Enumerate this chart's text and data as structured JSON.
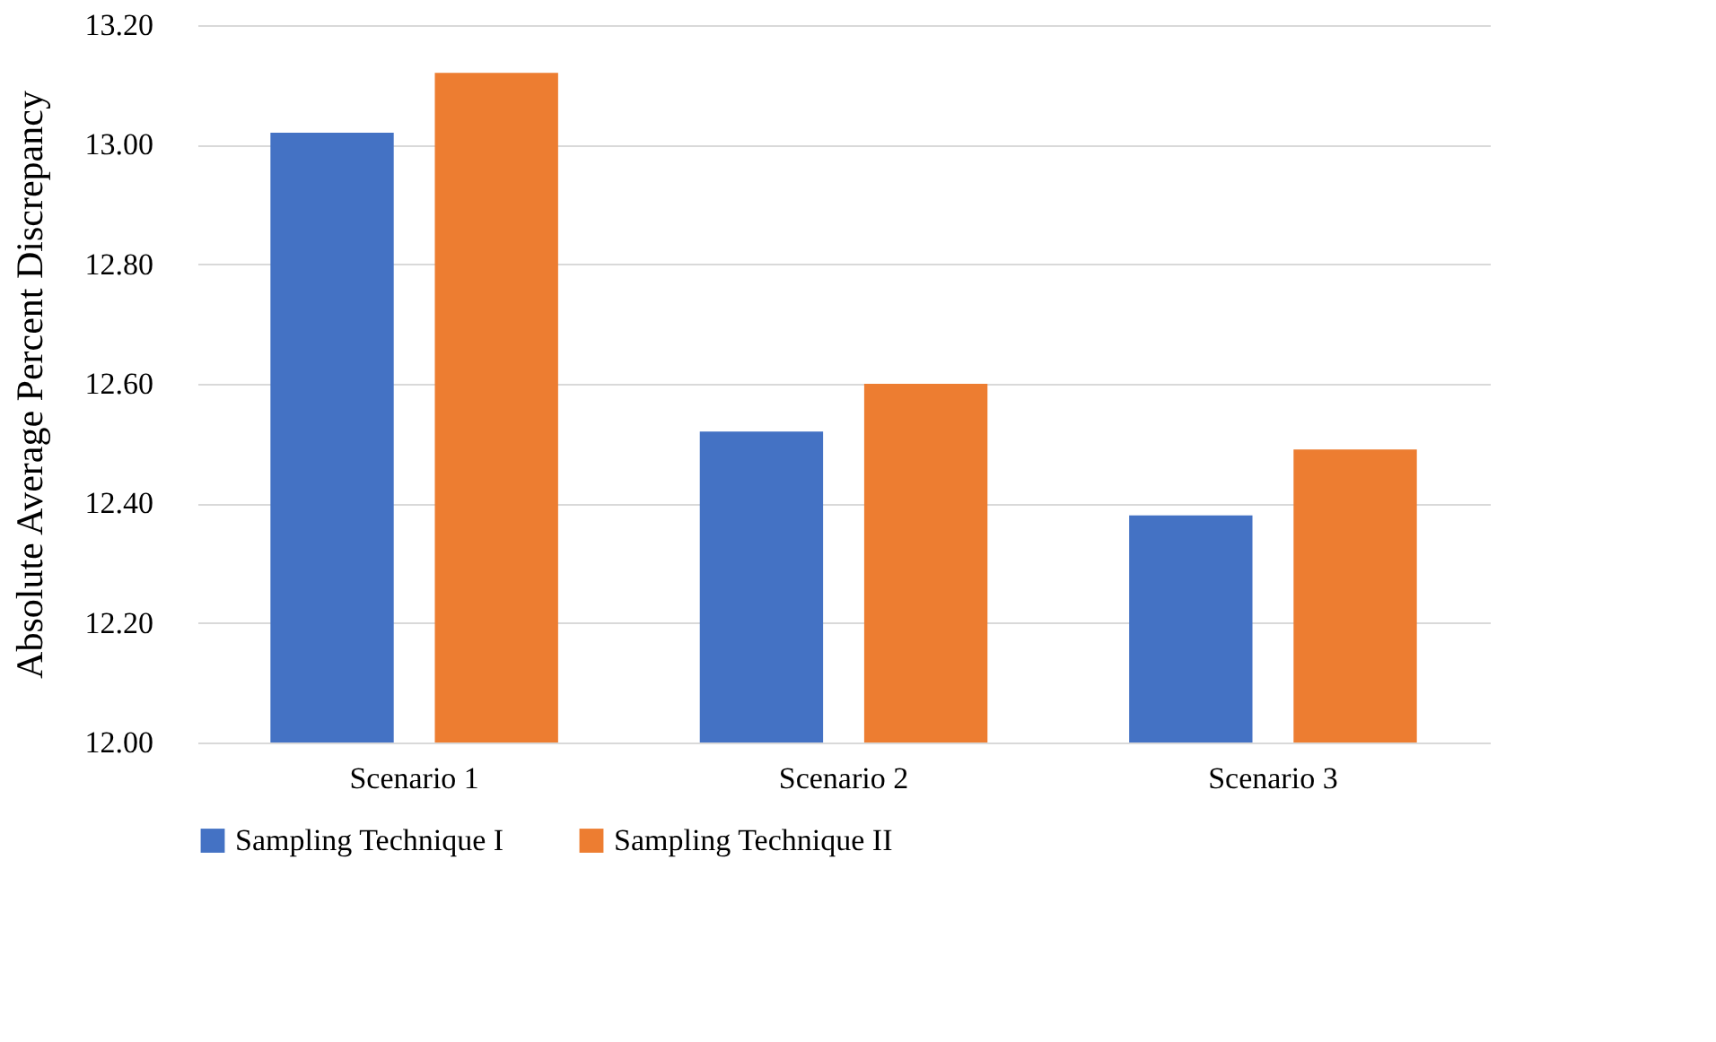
{
  "chart_data": {
    "type": "bar",
    "ylabel": "Absolute Average Percent Discrepancy",
    "categories": [
      "Scenario 1",
      "Scenario 2",
      "Scenario 3"
    ],
    "series": [
      {
        "name": "Sampling Technique I",
        "color": "#4472c4",
        "values": [
          13.02,
          12.52,
          12.38
        ]
      },
      {
        "name": "Sampling Technique II",
        "color": "#ed7d31",
        "values": [
          13.12,
          12.6,
          12.49
        ]
      }
    ],
    "ylim": [
      12.0,
      13.2
    ],
    "yticks": [
      {
        "value": 12.0,
        "label": "12.00"
      },
      {
        "value": 12.2,
        "label": "12.20"
      },
      {
        "value": 12.4,
        "label": "12.40"
      },
      {
        "value": 12.6,
        "label": "12.60"
      },
      {
        "value": 12.8,
        "label": "12.80"
      },
      {
        "value": 13.0,
        "label": "13.00"
      },
      {
        "value": 13.2,
        "label": "13.20"
      }
    ],
    "grid": "y",
    "legend": "bottom"
  }
}
